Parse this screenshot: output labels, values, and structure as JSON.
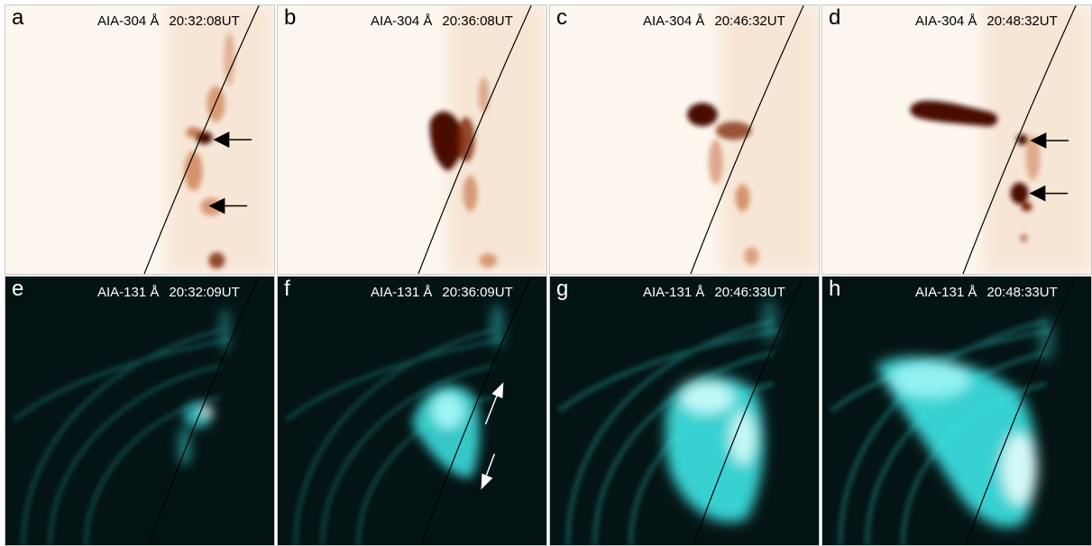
{
  "figure": {
    "panels": [
      {
        "letter": "a",
        "channel": "AIA-304 Å",
        "time": "20:32:08UT",
        "colormap": "sdo-aia-304",
        "arrows": [
          {
            "color": "#000000"
          },
          {
            "color": "#000000"
          }
        ]
      },
      {
        "letter": "b",
        "channel": "AIA-304 Å",
        "time": "20:36:08UT",
        "colormap": "sdo-aia-304",
        "arrows": []
      },
      {
        "letter": "c",
        "channel": "AIA-304 Å",
        "time": "20:46:32UT",
        "colormap": "sdo-aia-304",
        "arrows": []
      },
      {
        "letter": "d",
        "channel": "AIA-304 Å",
        "time": "20:48:32UT",
        "colormap": "sdo-aia-304",
        "arrows": [
          {
            "color": "#000000"
          },
          {
            "color": "#000000"
          }
        ]
      },
      {
        "letter": "e",
        "channel": "AIA-131 Å",
        "time": "20:32:09UT",
        "colormap": "sdo-aia-131",
        "arrows": []
      },
      {
        "letter": "f",
        "channel": "AIA-131 Å",
        "time": "20:36:09UT",
        "colormap": "sdo-aia-131",
        "arrows": [
          {
            "color": "#ffffff"
          },
          {
            "color": "#ffffff"
          }
        ]
      },
      {
        "letter": "g",
        "channel": "AIA-131 Å",
        "time": "20:46:33UT",
        "colormap": "sdo-aia-131",
        "arrows": []
      },
      {
        "letter": "h",
        "channel": "AIA-131 Å",
        "time": "20:48:33UT",
        "colormap": "sdo-aia-131",
        "arrows": []
      }
    ],
    "colors": {
      "aia304_background": "#fdf7f0",
      "aia304_emission": "#7a1f00",
      "aia131_background": "#041414",
      "aia131_emission": "#3fe6e6",
      "solar_limb": "#000000",
      "panel_border": "#c8c8c8"
    }
  }
}
